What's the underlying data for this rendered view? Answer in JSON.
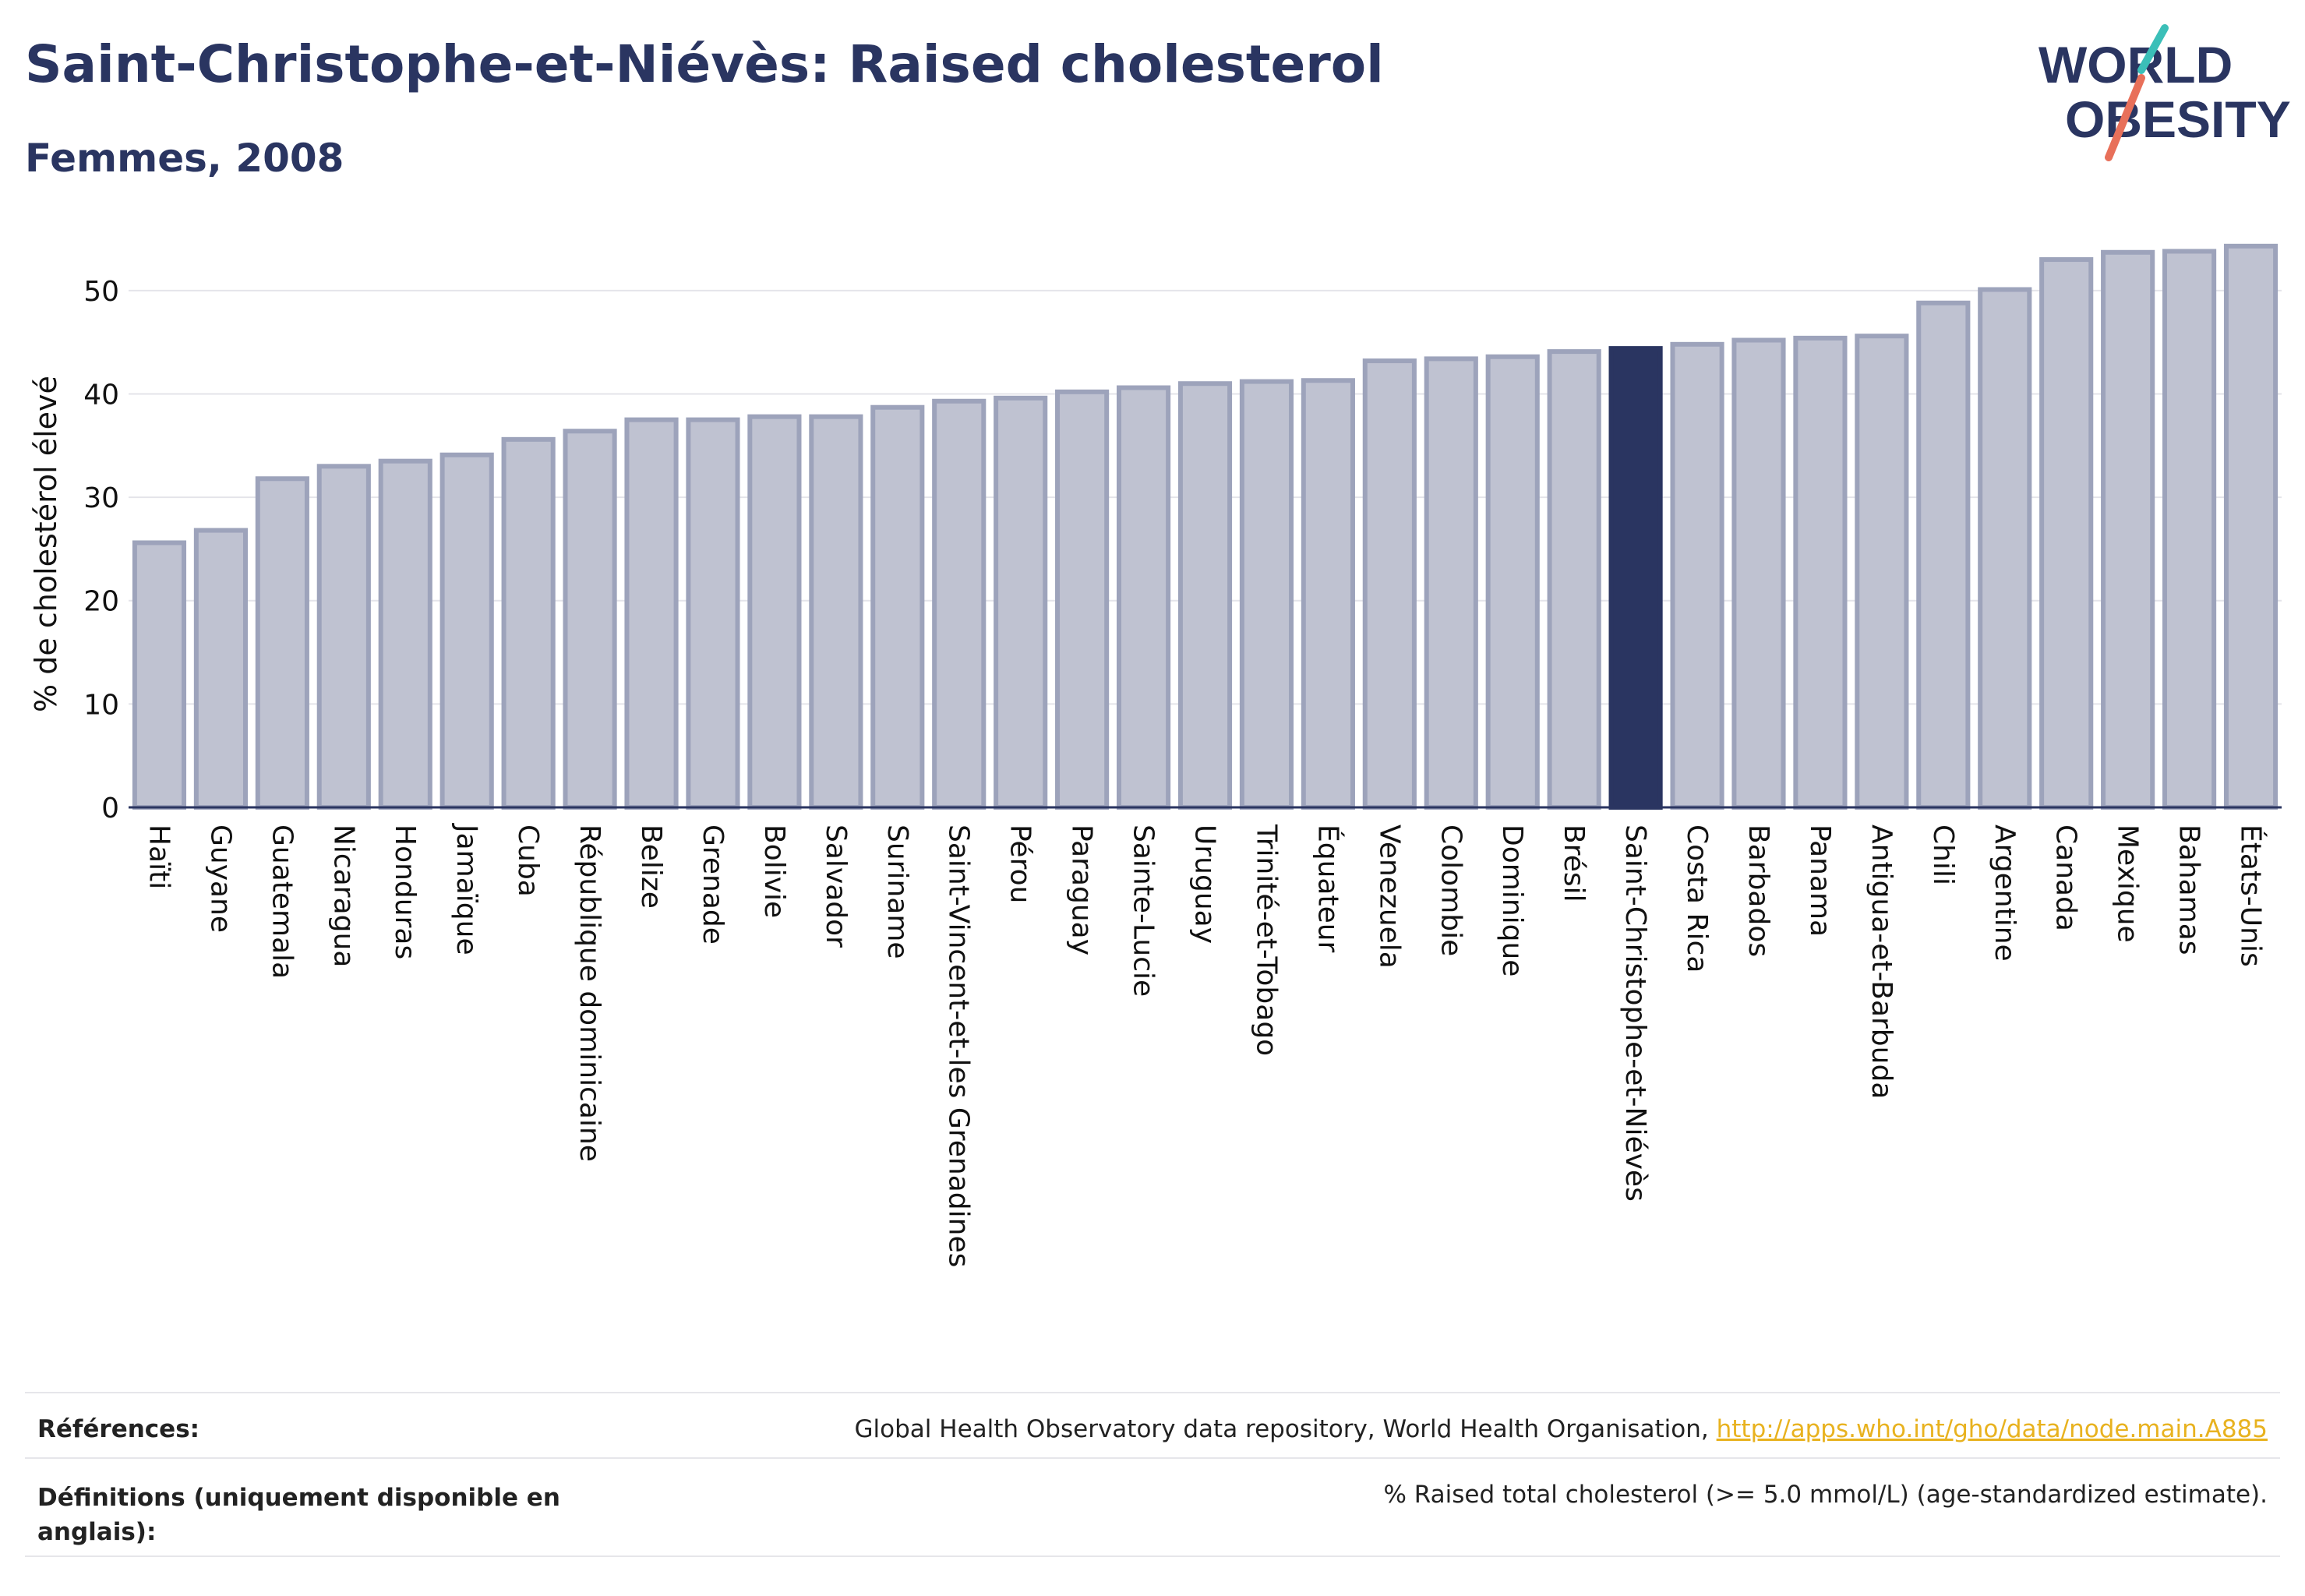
{
  "title": "Saint-Christophe-et-Niévès: Raised cholesterol",
  "subtitle": "Femmes, 2008",
  "logo": {
    "line1": "WORLD",
    "line2": "OBESITY",
    "accent_teal": "#3bbfb8",
    "accent_coral": "#e8705a"
  },
  "colors": {
    "bar": "#bfc2d1",
    "bar_stroke": "#9da3bb",
    "highlight": "#2a3561",
    "grid": "#e4e4ea",
    "axis": "#2a3561"
  },
  "chart_data": {
    "type": "bar",
    "ylabel": "% de cholestérol élevé",
    "ylim": [
      0,
      57
    ],
    "yticks": [
      0,
      10,
      20,
      30,
      40,
      50
    ],
    "grid": true,
    "highlight": "Saint-Christophe-et-Niévès",
    "categories": [
      "Haïti",
      "Guyane",
      "Guatemala",
      "Nicaragua",
      "Honduras",
      "Jamaïque",
      "Cuba",
      "République dominicaine",
      "Belize",
      "Grenade",
      "Bolivie",
      "Salvador",
      "Suriname",
      "Saint-Vincent-et-les Grenadines",
      "Pérou",
      "Paraguay",
      "Sainte-Lucie",
      "Uruguay",
      "Trinité-et-Tobago",
      "Équateur",
      "Venezuela",
      "Colombie",
      "Dominique",
      "Brésil",
      "Saint-Christophe-et-Niévès",
      "Costa Rica",
      "Barbados",
      "Panama",
      "Antigua-et-Barbuda",
      "Chili",
      "Argentine",
      "Canada",
      "Mexique",
      "Bahamas",
      "États-Unis"
    ],
    "values": [
      25.6,
      26.8,
      31.8,
      33.0,
      33.5,
      34.1,
      35.6,
      36.4,
      37.5,
      37.5,
      37.8,
      37.8,
      38.7,
      39.3,
      39.6,
      40.2,
      40.6,
      41.0,
      41.2,
      41.3,
      43.2,
      43.4,
      43.6,
      44.1,
      44.4,
      44.8,
      45.2,
      45.4,
      45.6,
      48.8,
      50.1,
      53.0,
      53.7,
      53.8,
      54.3
    ]
  },
  "references": {
    "label": "Références:",
    "text": "Global Health Observatory data repository, World Health Organisation, ",
    "link": "http://apps.who.int/gho/data/node.main.A885"
  },
  "definitions": {
    "label_line1": "Définitions (uniquement disponible en",
    "label_line2": "anglais):",
    "text": "% Raised total cholesterol (>= 5.0 mmol/L) (age-standardized estimate)."
  }
}
